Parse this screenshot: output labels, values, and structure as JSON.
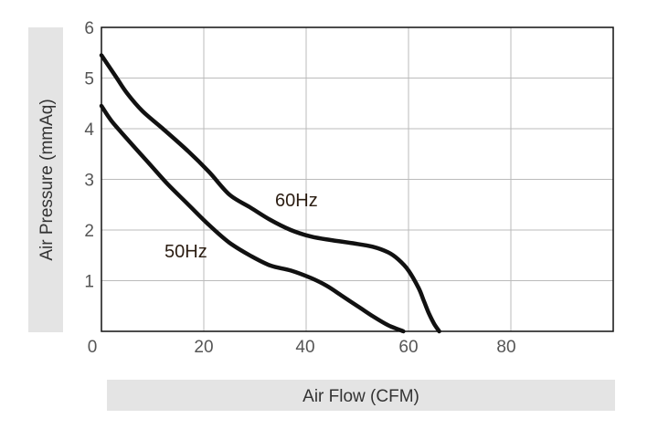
{
  "chart_data": {
    "type": "line",
    "xlabel": "Air Flow (CFM)",
    "ylabel": "Air Pressure (mmAq)",
    "xlim": [
      0,
      100
    ],
    "ylim": [
      0,
      6
    ],
    "x_ticks": [
      "0",
      "20",
      "40",
      "60",
      "80"
    ],
    "y_ticks": [
      "1",
      "2",
      "3",
      "4",
      "5",
      "6"
    ],
    "grid": true,
    "series": [
      {
        "name": "60Hz",
        "x": [
          0,
          1,
          3,
          5,
          8,
          12,
          17,
          21,
          25,
          29,
          33,
          37,
          41,
          45,
          49,
          53,
          56,
          58,
          60,
          62,
          63,
          64,
          65,
          66
        ],
        "y": [
          5.45,
          5.3,
          5.0,
          4.7,
          4.35,
          4.0,
          3.55,
          3.15,
          2.7,
          2.45,
          2.2,
          2.0,
          1.87,
          1.8,
          1.74,
          1.67,
          1.56,
          1.42,
          1.2,
          0.85,
          0.6,
          0.35,
          0.15,
          0
        ]
      },
      {
        "name": "50Hz",
        "x": [
          0,
          2,
          5,
          9,
          13,
          17,
          21,
          25,
          29,
          33,
          37,
          41,
          44,
          47,
          50,
          53,
          56,
          58,
          59
        ],
        "y": [
          4.45,
          4.15,
          3.8,
          3.35,
          2.9,
          2.5,
          2.1,
          1.75,
          1.5,
          1.3,
          1.2,
          1.05,
          0.9,
          0.7,
          0.5,
          0.3,
          0.12,
          0.04,
          0
        ]
      }
    ],
    "colors": {
      "curve": "#111111",
      "grid": "#bbbbbb",
      "axis_band": "#e4e4e4"
    }
  }
}
